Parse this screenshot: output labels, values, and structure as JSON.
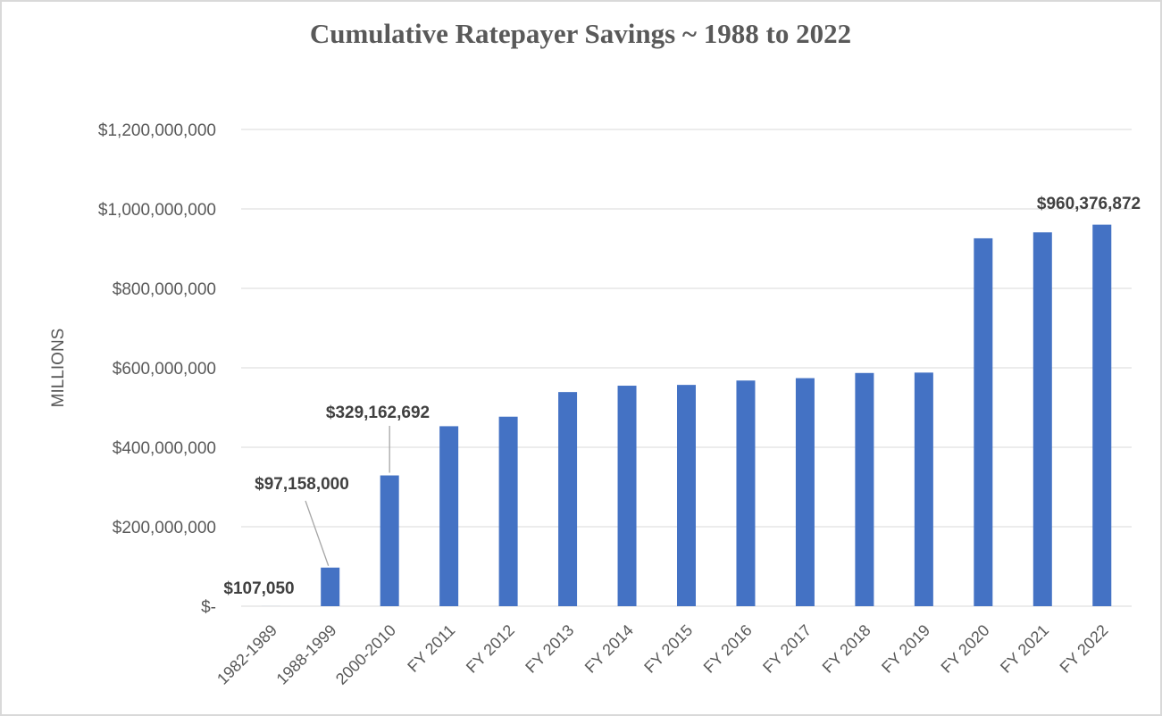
{
  "chart_data": {
    "type": "bar",
    "title": "Cumulative Ratepayer Savings ~ 1988 to 2022",
    "xlabel": "",
    "ylabel": "MILLIONS",
    "categories": [
      "1982-1989",
      "1988-1999",
      "2000-2010",
      "FY 2011",
      "FY 2012",
      "FY 2013",
      "FY 2014",
      "FY 2015",
      "FY 2016",
      "FY 2017",
      "FY 2018",
      "FY 2019",
      "FY 2020",
      "FY 2021",
      "FY 2022"
    ],
    "values": [
      107050,
      97158000,
      329162692,
      453000000,
      477000000,
      539000000,
      555000000,
      557000000,
      568000000,
      574000000,
      587000000,
      588000000,
      926000000,
      941000000,
      960376872
    ],
    "ylim": [
      0,
      1200000000
    ],
    "yticks": [
      {
        "value": 0,
        "label": "$-"
      },
      {
        "value": 200000000,
        "label": "$200,000,000"
      },
      {
        "value": 400000000,
        "label": "$400,000,000"
      },
      {
        "value": 600000000,
        "label": "$600,000,000"
      },
      {
        "value": 800000000,
        "label": "$800,000,000"
      },
      {
        "value": 1000000000,
        "label": "$1,000,000,000"
      },
      {
        "value": 1200000000,
        "label": "$1,200,000,000"
      }
    ],
    "data_labels": [
      {
        "index": 0,
        "text": "$107,050",
        "leader": false
      },
      {
        "index": 1,
        "text": "$97,158,000",
        "leader": true
      },
      {
        "index": 2,
        "text": "$329,162,692",
        "leader": true
      },
      {
        "index": 14,
        "text": "$960,376,872",
        "leader": false
      }
    ],
    "grid": true,
    "legend": "none",
    "colors": {
      "bar": "#4472c4",
      "grid": "#d9d9d9",
      "text": "#595959",
      "label": "#404040"
    }
  }
}
